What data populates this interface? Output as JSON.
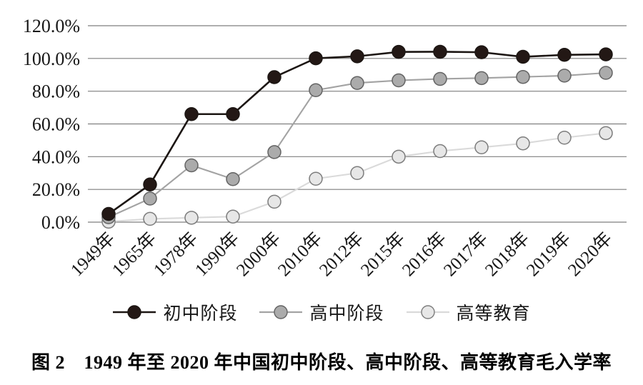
{
  "figure": {
    "caption": "图 2　1949 年至 2020 年中国初中阶段、高中阶段、高等教育毛入学率",
    "background": "#ffffff"
  },
  "chart_data": {
    "type": "line",
    "title": "",
    "xlabel": "",
    "ylabel": "",
    "categories": [
      "1949年",
      "1965年",
      "1978年",
      "1990年",
      "2000年",
      "2010年",
      "2012年",
      "2015年",
      "2016年",
      "2017年",
      "2018年",
      "2019年",
      "2020年"
    ],
    "series": [
      {
        "name": "初中阶段",
        "values": [
          5.0,
          23.0,
          66.0,
          66.0,
          88.6,
          100.1,
          101.3,
          104.0,
          104.1,
          103.8,
          101.0,
          102.2,
          102.5
        ],
        "line_color": "#1c1613",
        "marker_fill": "#231815",
        "marker_stroke": "#1c1613"
      },
      {
        "name": "高中阶段",
        "values": [
          3.0,
          14.4,
          34.7,
          26.3,
          42.8,
          80.6,
          85.0,
          86.6,
          87.5,
          88.0,
          88.7,
          89.5,
          91.2
        ],
        "line_color": "#a3a3a3",
        "marker_fill": "#ababab",
        "marker_stroke": "#636363"
      },
      {
        "name": "高等教育",
        "values": [
          0.3,
          2.0,
          2.7,
          3.4,
          12.5,
          26.5,
          30.0,
          40.0,
          43.4,
          45.7,
          48.1,
          51.6,
          54.4
        ],
        "line_color": "#dadada",
        "marker_fill": "#e7e7e7",
        "marker_stroke": "#7d7d7d"
      }
    ],
    "ylim": [
      0,
      120
    ],
    "ytick_labels": [
      "0.0%",
      "20.0%",
      "40.0%",
      "60.0%",
      "80.0%",
      "100.0%",
      "120.0%"
    ],
    "grid": true,
    "gridline_color": "#7f7f7f",
    "x_label_rotation": 45,
    "legend_position": "bottom"
  }
}
